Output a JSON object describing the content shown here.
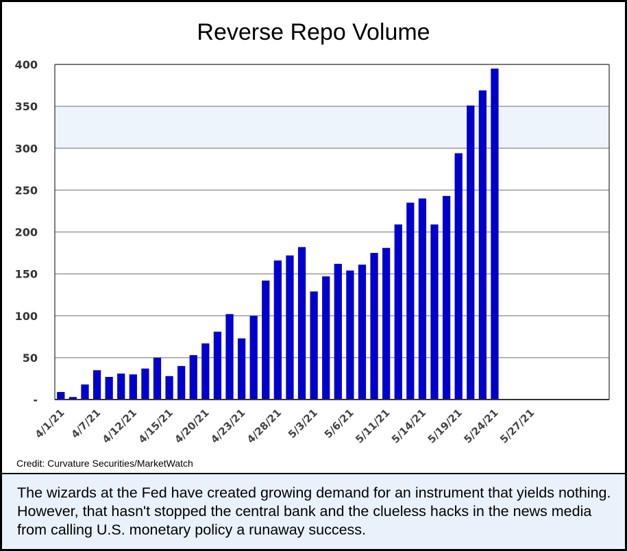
{
  "chart_data": {
    "type": "bar",
    "title": "Reverse Repo Volume",
    "xlabel": "",
    "ylabel": "",
    "ylim": [
      0,
      400
    ],
    "yticks": [
      0,
      50,
      100,
      150,
      200,
      250,
      300,
      350,
      400
    ],
    "ytick_labels": [
      "-",
      "50",
      "100",
      "150",
      "200",
      "250",
      "300",
      "350",
      "400"
    ],
    "bar_color": "#0000cc",
    "grid": true,
    "values": [
      9,
      3,
      18,
      35,
      27,
      31,
      30,
      37,
      50,
      28,
      40,
      53,
      67,
      81,
      102,
      73,
      100,
      142,
      166,
      172,
      182,
      129,
      147,
      162,
      154,
      161,
      175,
      181,
      209,
      235,
      240,
      209,
      243,
      294,
      351,
      369,
      395
    ],
    "total_slots": 46,
    "x_tick_labels": [
      "4/1/21",
      "4/7/21",
      "4/12/21",
      "4/15/21",
      "4/20/21",
      "4/23/21",
      "4/28/21",
      "5/3/21",
      "5/6/21",
      "5/11/21",
      "5/14/21",
      "5/19/21",
      "5/24/21",
      "5/27/21"
    ],
    "x_tick_slots": [
      0,
      3,
      6,
      9,
      12,
      15,
      18,
      21,
      24,
      27,
      30,
      33,
      36,
      39
    ]
  },
  "credit": "Credit: Curvature Securities/MarketWatch",
  "caption": "The wizards at the Fed have created growing demand for an instrument that yields nothing. However, that hasn't stopped the central bank and the clueless hacks in the news media from calling U.S. monetary policy a runaway success."
}
